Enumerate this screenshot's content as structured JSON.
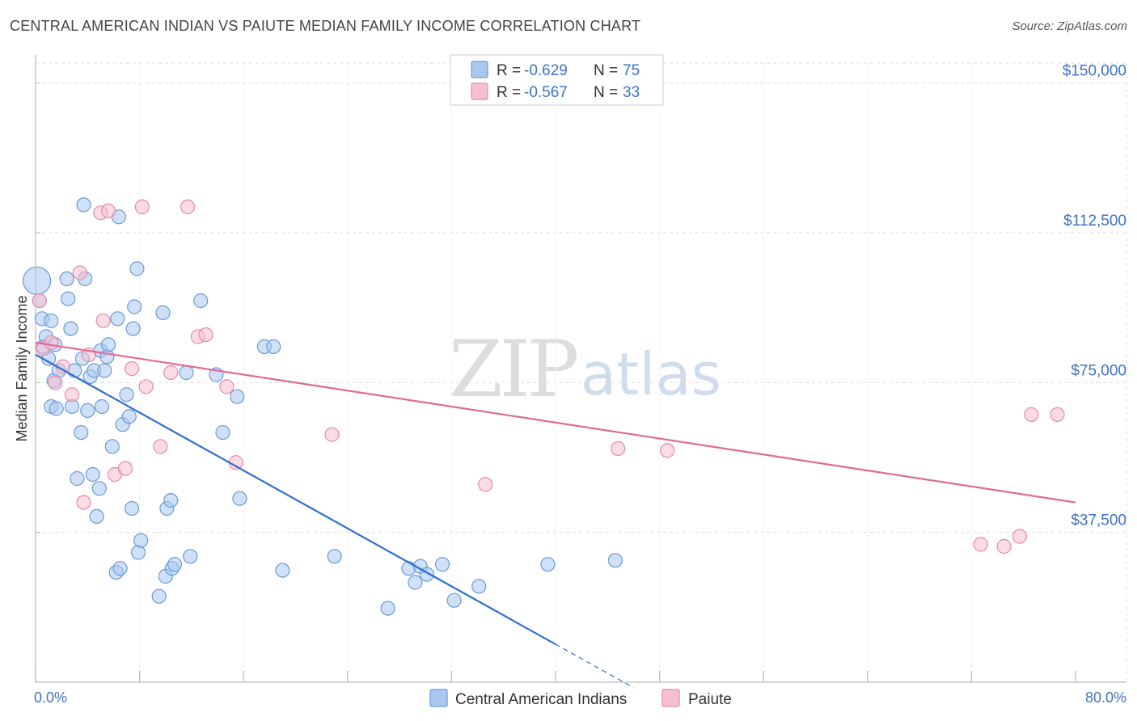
{
  "title": "CENTRAL AMERICAN INDIAN VS PAIUTE MEDIAN FAMILY INCOME CORRELATION CHART",
  "source": "Source: ZipAtlas.com",
  "watermark": {
    "part1": "ZIP",
    "part2": "atlas"
  },
  "legend_top": [
    {
      "r_label": "R = ",
      "r_value": "-0.629",
      "n_label": "N = ",
      "n_value": "75",
      "color": "#a9c8f0",
      "stroke": "#6a9ad8"
    },
    {
      "r_label": "R = ",
      "r_value": "-0.567",
      "n_label": "N = ",
      "n_value": "33",
      "color": "#f6bfd1",
      "stroke": "#e88aa8"
    }
  ],
  "legend_bottom": [
    {
      "label": "Central American Indians",
      "color": "#a9c8f0",
      "stroke": "#6a9ad8"
    },
    {
      "label": "Paiute",
      "color": "#f6bfd1",
      "stroke": "#e88aa8"
    }
  ],
  "chart_data": {
    "type": "scatter",
    "title": "CENTRAL AMERICAN INDIAN VS PAIUTE MEDIAN FAMILY INCOME CORRELATION CHART",
    "xlabel": "",
    "ylabel": "Median Family Income",
    "xlim": [
      0,
      80
    ],
    "ylim": [
      0,
      155000
    ],
    "x_tick_labels": [
      "0.0%",
      "80.0%"
    ],
    "y_ticks": [
      37500,
      75000,
      112500,
      150000
    ],
    "y_tick_labels": [
      "$37,500",
      "$75,000",
      "$112,500",
      "$150,000"
    ],
    "grid": true,
    "legend_placement": "top-center",
    "series": [
      {
        "name": "Central American Indians",
        "color": "#6a9ad8",
        "fill": "#a9c8f0",
        "trend_color": "#2f6fd0",
        "trend": {
          "x0": 0,
          "y0": 82000,
          "x1": 40,
          "y1": 9500,
          "dash_to_x": 46
        },
        "points": [
          [
            0.1,
            100500
          ],
          [
            0.3,
            95500
          ],
          [
            0.5,
            91000
          ],
          [
            0.6,
            84000
          ],
          [
            0.8,
            86500
          ],
          [
            1.0,
            81000
          ],
          [
            1.2,
            90500
          ],
          [
            1.2,
            69000
          ],
          [
            1.4,
            75500
          ],
          [
            1.5,
            84500
          ],
          [
            1.6,
            68500
          ],
          [
            1.8,
            78000
          ],
          [
            2.4,
            101000
          ],
          [
            2.5,
            96000
          ],
          [
            2.7,
            88500
          ],
          [
            2.8,
            69000
          ],
          [
            3.0,
            78000
          ],
          [
            3.2,
            51000
          ],
          [
            3.5,
            62500
          ],
          [
            3.6,
            81000
          ],
          [
            3.7,
            119500
          ],
          [
            3.8,
            101000
          ],
          [
            4.0,
            68000
          ],
          [
            4.2,
            76500
          ],
          [
            4.4,
            52000
          ],
          [
            4.5,
            78000
          ],
          [
            4.7,
            41500
          ],
          [
            4.9,
            48500
          ],
          [
            5.0,
            83000
          ],
          [
            5.1,
            69000
          ],
          [
            5.3,
            78000
          ],
          [
            5.5,
            81500
          ],
          [
            5.6,
            84500
          ],
          [
            5.9,
            59000
          ],
          [
            6.2,
            27500
          ],
          [
            6.3,
            91000
          ],
          [
            6.4,
            116500
          ],
          [
            6.5,
            28500
          ],
          [
            6.7,
            64500
          ],
          [
            7.0,
            72000
          ],
          [
            7.2,
            66500
          ],
          [
            7.4,
            43500
          ],
          [
            7.5,
            88500
          ],
          [
            7.6,
            94000
          ],
          [
            7.8,
            103500
          ],
          [
            7.9,
            32500
          ],
          [
            8.1,
            35500
          ],
          [
            9.5,
            21500
          ],
          [
            9.8,
            92500
          ],
          [
            10.0,
            26500
          ],
          [
            10.1,
            43500
          ],
          [
            10.4,
            45500
          ],
          [
            10.5,
            28500
          ],
          [
            10.7,
            29500
          ],
          [
            11.6,
            77500
          ],
          [
            11.9,
            31500
          ],
          [
            12.7,
            95500
          ],
          [
            13.9,
            77000
          ],
          [
            14.4,
            62500
          ],
          [
            15.5,
            71500
          ],
          [
            15.7,
            46000
          ],
          [
            17.6,
            84000
          ],
          [
            18.3,
            84000
          ],
          [
            19.0,
            28000
          ],
          [
            23.0,
            31500
          ],
          [
            27.1,
            18500
          ],
          [
            28.7,
            28500
          ],
          [
            29.2,
            25000
          ],
          [
            29.6,
            29000
          ],
          [
            30.1,
            27000
          ],
          [
            31.3,
            29500
          ],
          [
            32.2,
            20500
          ],
          [
            34.1,
            24000
          ],
          [
            39.4,
            29500
          ],
          [
            44.6,
            30500
          ]
        ]
      },
      {
        "name": "Paiute",
        "color": "#e88aa8",
        "fill": "#f6bfd1",
        "trend_color": "#e06a96",
        "trend": {
          "x0": 0,
          "y0": 85000,
          "x1": 80,
          "y1": 45000
        },
        "points": [
          [
            0.3,
            95500
          ],
          [
            0.6,
            83500
          ],
          [
            1.2,
            85000
          ],
          [
            1.5,
            75000
          ],
          [
            2.1,
            79000
          ],
          [
            2.8,
            72000
          ],
          [
            3.4,
            102500
          ],
          [
            3.7,
            45000
          ],
          [
            4.1,
            82000
          ],
          [
            5.0,
            117500
          ],
          [
            5.2,
            90500
          ],
          [
            5.6,
            118000
          ],
          [
            6.1,
            52000
          ],
          [
            6.9,
            53500
          ],
          [
            7.4,
            78500
          ],
          [
            8.2,
            119000
          ],
          [
            8.5,
            74000
          ],
          [
            9.6,
            59000
          ],
          [
            10.4,
            77500
          ],
          [
            11.7,
            119000
          ],
          [
            12.5,
            86500
          ],
          [
            13.1,
            87000
          ],
          [
            14.7,
            74000
          ],
          [
            15.4,
            55000
          ],
          [
            22.8,
            62000
          ],
          [
            34.6,
            49500
          ],
          [
            44.8,
            58500
          ],
          [
            48.6,
            58000
          ],
          [
            72.7,
            34500
          ],
          [
            74.5,
            34000
          ],
          [
            75.7,
            36500
          ],
          [
            76.6,
            67000
          ],
          [
            78.6,
            67000
          ]
        ]
      }
    ]
  }
}
